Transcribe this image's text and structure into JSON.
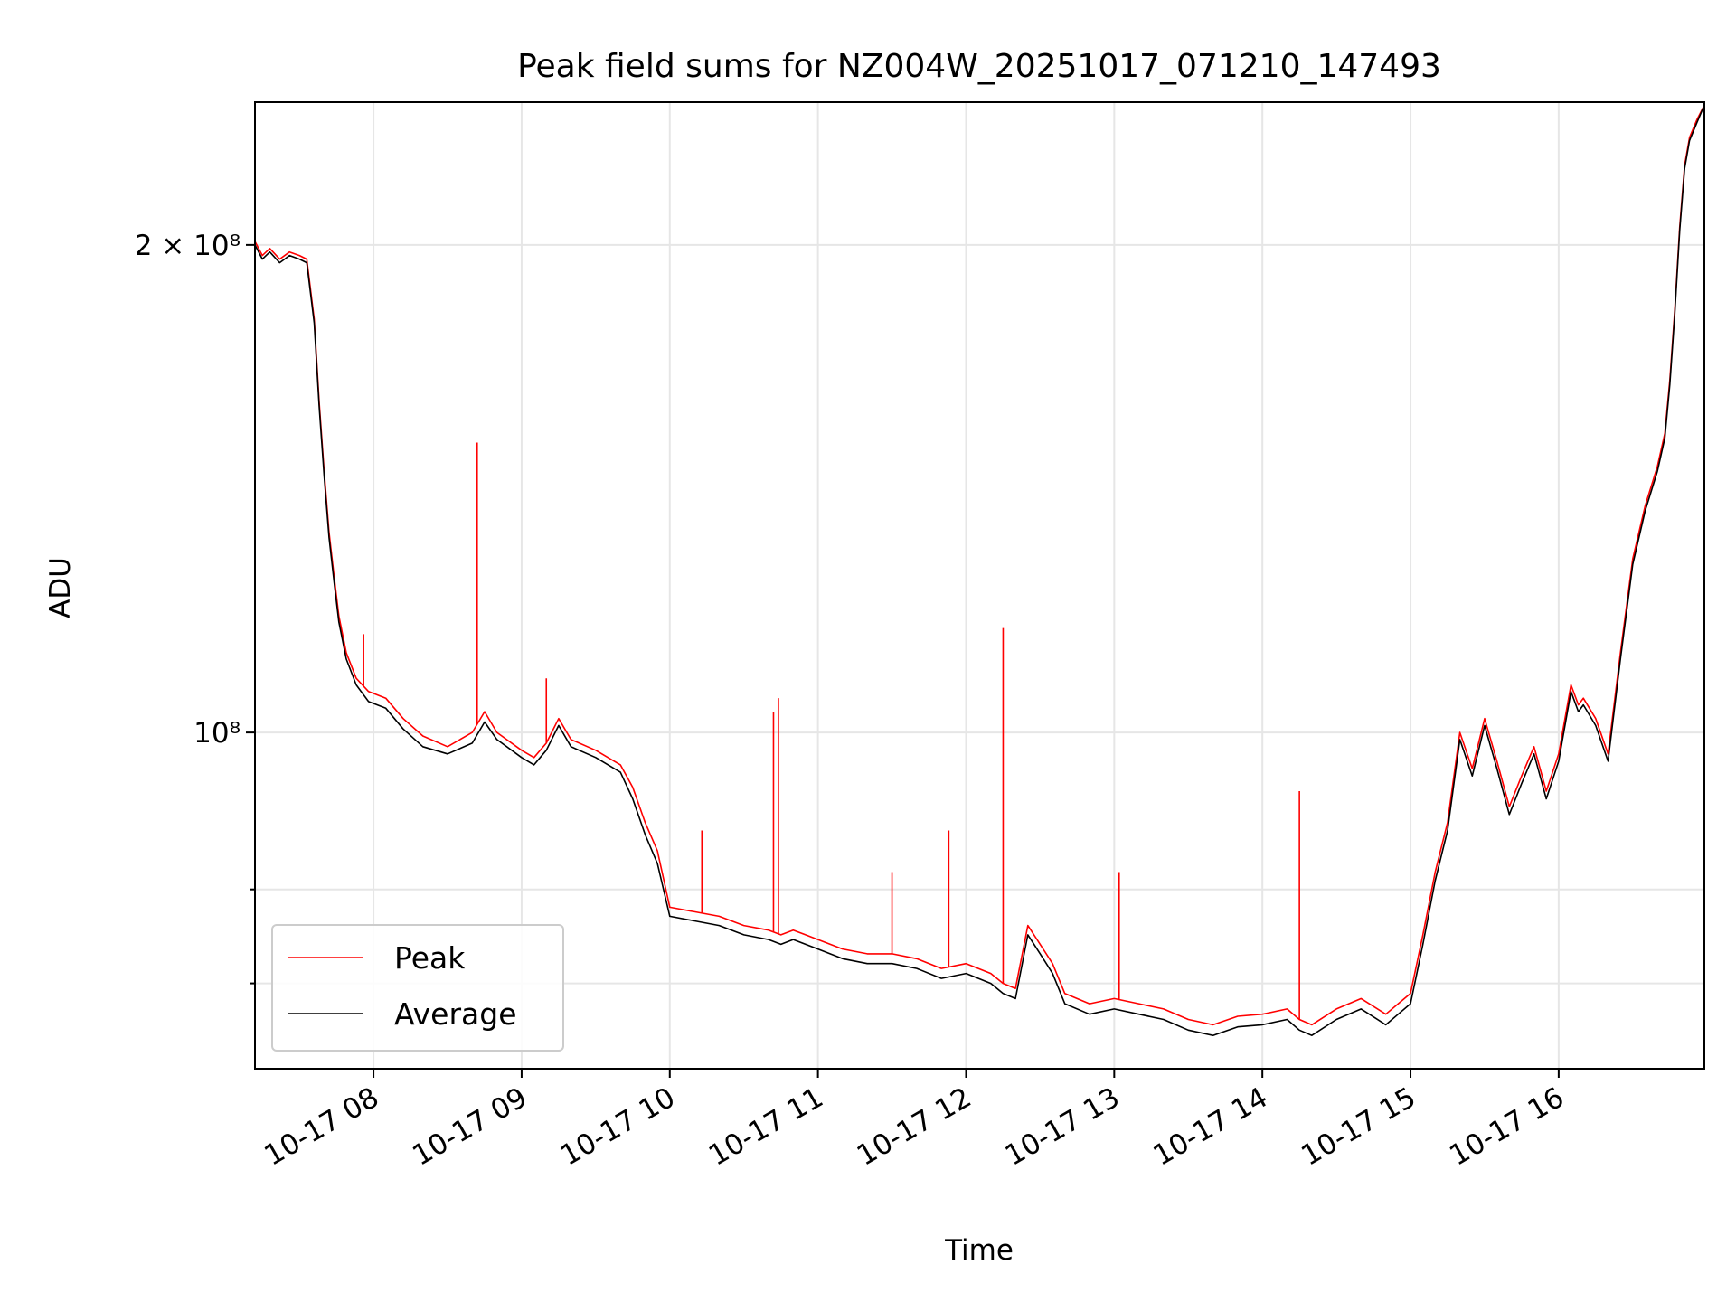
{
  "chart_data": {
    "type": "line",
    "title": "Peak field sums for NZ004W_20251017_071210_147493",
    "xlabel": "Time",
    "ylabel": "ADU",
    "yscale": "log",
    "ylim": [
      62000000,
      245000000
    ],
    "xlim": [
      "2025-10-17 07:12",
      "2025-10-17 16:59"
    ],
    "grid": true,
    "legend": "lower-left",
    "x_ticks": [
      "10-17 08",
      "10-17 09",
      "10-17 10",
      "10-17 11",
      "10-17 12",
      "10-17 13",
      "10-17 14",
      "10-17 15",
      "10-17 16"
    ],
    "y_ticks": [
      {
        "value": 200000000,
        "label": "2 × 10⁸",
        "major": true
      },
      {
        "value": 100000000,
        "label": "10⁸",
        "major": true
      },
      {
        "value": 80000000,
        "label": "",
        "major": false
      },
      {
        "value": 70000000,
        "label": "",
        "major": false
      }
    ],
    "series": [
      {
        "name": "Peak",
        "color": "#ff0000",
        "x": [
          "2025-10-17 07:12",
          "2025-10-17 07:15",
          "2025-10-17 07:18",
          "2025-10-17 07:22",
          "2025-10-17 07:26",
          "2025-10-17 07:30",
          "2025-10-17 07:33",
          "2025-10-17 07:36",
          "2025-10-17 07:38",
          "2025-10-17 07:40",
          "2025-10-17 07:42",
          "2025-10-17 07:44",
          "2025-10-17 07:46",
          "2025-10-17 07:49",
          "2025-10-17 07:53",
          "2025-10-17 07:58",
          "2025-10-17 08:05",
          "2025-10-17 08:12",
          "2025-10-17 08:20",
          "2025-10-17 08:30",
          "2025-10-17 08:40",
          "2025-10-17 08:45",
          "2025-10-17 08:50",
          "2025-10-17 09:00",
          "2025-10-17 09:05",
          "2025-10-17 09:10",
          "2025-10-17 09:15",
          "2025-10-17 09:20",
          "2025-10-17 09:30",
          "2025-10-17 09:40",
          "2025-10-17 09:45",
          "2025-10-17 09:50",
          "2025-10-17 09:55",
          "2025-10-17 10:00",
          "2025-10-17 10:10",
          "2025-10-17 10:20",
          "2025-10-17 10:30",
          "2025-10-17 10:40",
          "2025-10-17 10:45",
          "2025-10-17 10:50",
          "2025-10-17 11:00",
          "2025-10-17 11:10",
          "2025-10-17 11:20",
          "2025-10-17 11:30",
          "2025-10-17 11:40",
          "2025-10-17 11:50",
          "2025-10-17 12:00",
          "2025-10-17 12:10",
          "2025-10-17 12:15",
          "2025-10-17 12:20",
          "2025-10-17 12:25",
          "2025-10-17 12:30",
          "2025-10-17 12:35",
          "2025-10-17 12:40",
          "2025-10-17 12:50",
          "2025-10-17 13:00",
          "2025-10-17 13:10",
          "2025-10-17 13:20",
          "2025-10-17 13:30",
          "2025-10-17 13:40",
          "2025-10-17 13:50",
          "2025-10-17 14:00",
          "2025-10-17 14:10",
          "2025-10-17 14:15",
          "2025-10-17 14:20",
          "2025-10-17 14:30",
          "2025-10-17 14:40",
          "2025-10-17 14:50",
          "2025-10-17 14:55",
          "2025-10-17 15:00",
          "2025-10-17 15:05",
          "2025-10-17 15:10",
          "2025-10-17 15:15",
          "2025-10-17 15:20",
          "2025-10-17 15:25",
          "2025-10-17 15:30",
          "2025-10-17 15:35",
          "2025-10-17 15:40",
          "2025-10-17 15:45",
          "2025-10-17 15:50",
          "2025-10-17 15:55",
          "2025-10-17 16:00",
          "2025-10-17 16:05",
          "2025-10-17 16:08",
          "2025-10-17 16:10",
          "2025-10-17 16:15",
          "2025-10-17 16:20",
          "2025-10-17 16:25",
          "2025-10-17 16:30",
          "2025-10-17 16:35",
          "2025-10-17 16:40",
          "2025-10-17 16:43",
          "2025-10-17 16:45",
          "2025-10-17 16:47",
          "2025-10-17 16:49",
          "2025-10-17 16:51",
          "2025-10-17 16:53",
          "2025-10-17 16:56",
          "2025-10-17 16:59"
        ],
        "values": [
          201000000,
          197000000,
          199000000,
          196000000,
          198000000,
          197000000,
          196000000,
          180000000,
          160000000,
          145000000,
          133000000,
          125000000,
          118000000,
          112000000,
          108000000,
          106000000,
          105000000,
          102000000,
          99500000,
          98000000,
          100000000,
          103000000,
          100000000,
          97500000,
          96500000,
          98500000,
          102000000,
          99000000,
          97500000,
          95500000,
          92500000,
          88000000,
          84500000,
          78000000,
          77500000,
          77000000,
          76000000,
          75500000,
          75000000,
          75500000,
          74500000,
          73500000,
          73000000,
          73000000,
          72500000,
          71500000,
          72000000,
          71000000,
          70000000,
          69500000,
          76000000,
          74000000,
          72000000,
          69000000,
          68000000,
          68500000,
          68000000,
          67500000,
          66500000,
          66000000,
          66800000,
          67000000,
          67500000,
          66500000,
          66000000,
          67500000,
          68500000,
          67000000,
          68000000,
          69000000,
          75000000,
          82000000,
          88000000,
          100000000,
          95000000,
          102000000,
          96000000,
          90000000,
          94000000,
          98000000,
          92000000,
          97000000,
          107000000,
          104000000,
          105000000,
          102000000,
          97000000,
          112000000,
          128000000,
          138000000,
          146000000,
          153000000,
          165000000,
          182000000,
          205000000,
          224000000,
          233000000,
          239000000,
          244000000
        ],
        "spikes": [
          {
            "x": "2025-10-17 08:42",
            "value": 151000000
          },
          {
            "x": "2025-10-17 10:42",
            "value": 103000000
          },
          {
            "x": "2025-10-17 10:44",
            "value": 105000000
          },
          {
            "x": "2025-10-17 11:53",
            "value": 87000000
          },
          {
            "x": "2025-10-17 12:15",
            "value": 116000000
          },
          {
            "x": "2025-10-17 13:02",
            "value": 82000000
          },
          {
            "x": "2025-10-17 14:15",
            "value": 92000000
          },
          {
            "x": "2025-10-17 07:56",
            "value": 115000000
          },
          {
            "x": "2025-10-17 09:10",
            "value": 108000000
          },
          {
            "x": "2025-10-17 10:13",
            "value": 87000000
          },
          {
            "x": "2025-10-17 11:30",
            "value": 82000000
          }
        ]
      },
      {
        "name": "Average",
        "color": "#000000",
        "x": [
          "2025-10-17 07:12",
          "2025-10-17 07:15",
          "2025-10-17 07:18",
          "2025-10-17 07:22",
          "2025-10-17 07:26",
          "2025-10-17 07:30",
          "2025-10-17 07:33",
          "2025-10-17 07:36",
          "2025-10-17 07:38",
          "2025-10-17 07:40",
          "2025-10-17 07:42",
          "2025-10-17 07:44",
          "2025-10-17 07:46",
          "2025-10-17 07:49",
          "2025-10-17 07:53",
          "2025-10-17 07:58",
          "2025-10-17 08:05",
          "2025-10-17 08:12",
          "2025-10-17 08:20",
          "2025-10-17 08:30",
          "2025-10-17 08:40",
          "2025-10-17 08:45",
          "2025-10-17 08:50",
          "2025-10-17 09:00",
          "2025-10-17 09:05",
          "2025-10-17 09:10",
          "2025-10-17 09:15",
          "2025-10-17 09:20",
          "2025-10-17 09:30",
          "2025-10-17 09:40",
          "2025-10-17 09:45",
          "2025-10-17 09:50",
          "2025-10-17 09:55",
          "2025-10-17 10:00",
          "2025-10-17 10:10",
          "2025-10-17 10:20",
          "2025-10-17 10:30",
          "2025-10-17 10:40",
          "2025-10-17 10:45",
          "2025-10-17 10:50",
          "2025-10-17 11:00",
          "2025-10-17 11:10",
          "2025-10-17 11:20",
          "2025-10-17 11:30",
          "2025-10-17 11:40",
          "2025-10-17 11:50",
          "2025-10-17 12:00",
          "2025-10-17 12:10",
          "2025-10-17 12:15",
          "2025-10-17 12:20",
          "2025-10-17 12:25",
          "2025-10-17 12:30",
          "2025-10-17 12:35",
          "2025-10-17 12:40",
          "2025-10-17 12:50",
          "2025-10-17 13:00",
          "2025-10-17 13:10",
          "2025-10-17 13:20",
          "2025-10-17 13:30",
          "2025-10-17 13:40",
          "2025-10-17 13:50",
          "2025-10-17 14:00",
          "2025-10-17 14:10",
          "2025-10-17 14:15",
          "2025-10-17 14:20",
          "2025-10-17 14:30",
          "2025-10-17 14:40",
          "2025-10-17 14:50",
          "2025-10-17 14:55",
          "2025-10-17 15:00",
          "2025-10-17 15:05",
          "2025-10-17 15:10",
          "2025-10-17 15:15",
          "2025-10-17 15:20",
          "2025-10-17 15:25",
          "2025-10-17 15:30",
          "2025-10-17 15:35",
          "2025-10-17 15:40",
          "2025-10-17 15:45",
          "2025-10-17 15:50",
          "2025-10-17 15:55",
          "2025-10-17 16:00",
          "2025-10-17 16:05",
          "2025-10-17 16:08",
          "2025-10-17 16:10",
          "2025-10-17 16:15",
          "2025-10-17 16:20",
          "2025-10-17 16:25",
          "2025-10-17 16:30",
          "2025-10-17 16:35",
          "2025-10-17 16:40",
          "2025-10-17 16:43",
          "2025-10-17 16:45",
          "2025-10-17 16:47",
          "2025-10-17 16:49",
          "2025-10-17 16:51",
          "2025-10-17 16:53",
          "2025-10-17 16:56",
          "2025-10-17 16:59"
        ],
        "values": [
          200000000,
          196000000,
          198000000,
          195000000,
          197000000,
          196000000,
          195000000,
          179000000,
          159000000,
          144000000,
          132000000,
          124000000,
          117000000,
          111000000,
          107000000,
          104500000,
          103500000,
          100500000,
          98000000,
          97000000,
          98500000,
          101500000,
          99000000,
          96500000,
          95500000,
          97500000,
          101000000,
          98000000,
          96500000,
          94500000,
          91000000,
          86500000,
          83000000,
          77000000,
          76500000,
          76000000,
          75000000,
          74500000,
          74000000,
          74500000,
          73500000,
          72500000,
          72000000,
          72000000,
          71500000,
          70500000,
          71000000,
          70000000,
          69000000,
          68500000,
          75000000,
          73000000,
          71000000,
          68000000,
          67000000,
          67500000,
          67000000,
          66500000,
          65500000,
          65000000,
          65800000,
          66000000,
          66500000,
          65500000,
          65000000,
          66500000,
          67500000,
          66000000,
          67000000,
          68000000,
          74000000,
          81000000,
          87000000,
          99000000,
          94000000,
          101000000,
          95000000,
          89000000,
          93000000,
          97000000,
          91000000,
          96000000,
          106000000,
          103000000,
          104000000,
          101000000,
          96000000,
          111000000,
          127000000,
          137000000,
          145000000,
          152000000,
          164000000,
          181000000,
          204000000,
          223000000,
          232000000,
          238000000,
          244000000
        ]
      }
    ]
  }
}
